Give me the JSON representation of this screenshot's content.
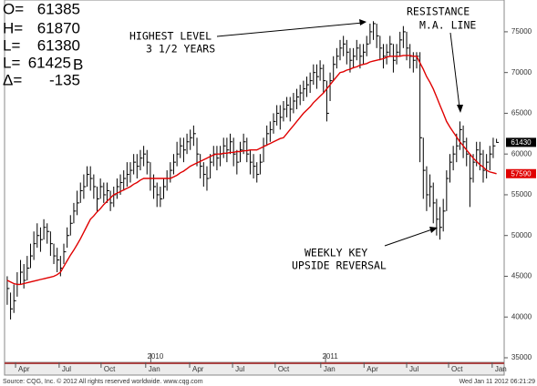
{
  "quote": {
    "rows": [
      {
        "label": "O=",
        "value": "61385"
      },
      {
        "label": "H=",
        "value": "61870"
      },
      {
        "label": "L=",
        "value": "61380"
      },
      {
        "label": "L=",
        "value": "61425",
        "flag": "B"
      },
      {
        "label": "Δ=",
        "value": "-135"
      }
    ]
  },
  "chart_data": {
    "type": "ohlc",
    "color": "#000000",
    "high": [
      45000,
      43000,
      44000,
      45500,
      47000,
      46500,
      47500,
      49000,
      50500,
      51500,
      51000,
      52000,
      51500,
      50500,
      49000,
      48500,
      47500,
      49000,
      51000,
      52500,
      54000,
      55500,
      56500,
      57500,
      58500,
      58500,
      57500,
      56000,
      57000,
      56500,
      56500,
      55500,
      56000,
      57000,
      57500,
      58000,
      59000,
      59000,
      60000,
      60000,
      60500,
      61000,
      60500,
      59000,
      57500,
      56500,
      56000,
      57000,
      58000,
      59000,
      60000,
      61500,
      62000,
      62000,
      62500,
      63000,
      63500,
      62000,
      60000,
      59000,
      58500,
      60000,
      61000,
      61000,
      61000,
      62000,
      62000,
      62500,
      62000,
      60500,
      61500,
      62500,
      62000,
      60500,
      60000,
      59000,
      60000,
      62000,
      63500,
      64000,
      65000,
      66000,
      66000,
      66500,
      67000,
      67000,
      67500,
      68000,
      68500,
      69000,
      69500,
      70000,
      71000,
      71000,
      71500,
      71000,
      69000,
      70000,
      72000,
      73000,
      74000,
      74500,
      74000,
      73000,
      73000,
      74000,
      73500,
      73500,
      74500,
      76000,
      76300,
      76000,
      74500,
      73500,
      73500,
      74500,
      73500,
      73500,
      75000,
      75700,
      75000,
      73500,
      72500,
      72500,
      72500,
      62000,
      58500,
      57500,
      56500,
      54500,
      53500,
      54500,
      58000,
      60000,
      61000,
      62500,
      64000,
      63500,
      62000,
      60000,
      60000,
      61500,
      61500,
      60500,
      60000,
      61000,
      62000,
      61870
    ],
    "low": [
      41500,
      39700,
      40500,
      42500,
      44000,
      43500,
      44500,
      46000,
      47000,
      48500,
      48000,
      49500,
      49000,
      47500,
      46500,
      45500,
      45000,
      46500,
      48500,
      50000,
      51500,
      52500,
      54000,
      54500,
      56000,
      55500,
      54500,
      53000,
      54500,
      54000,
      54000,
      53000,
      53500,
      54500,
      55000,
      55500,
      56000,
      56500,
      57500,
      57000,
      58000,
      58500,
      57500,
      55500,
      54500,
      53500,
      53500,
      54500,
      55500,
      56500,
      57500,
      58500,
      59500,
      59000,
      60000,
      60500,
      61000,
      58500,
      57000,
      56000,
      55500,
      57000,
      58500,
      58000,
      58500,
      59500,
      59000,
      60000,
      58500,
      57500,
      59000,
      60000,
      59000,
      57500,
      57000,
      56500,
      57500,
      59000,
      61000,
      61500,
      62500,
      63500,
      63000,
      64000,
      64500,
      64000,
      65000,
      65500,
      66000,
      66500,
      67000,
      67500,
      68500,
      68000,
      69000,
      67500,
      64000,
      66500,
      69000,
      70500,
      71500,
      72000,
      71000,
      70000,
      70500,
      71500,
      70500,
      71000,
      72000,
      73500,
      74000,
      73000,
      71500,
      70500,
      71000,
      72000,
      70000,
      71000,
      72000,
      73000,
      71500,
      70500,
      70000,
      70500,
      59000,
      54500,
      53000,
      53500,
      51500,
      50000,
      49500,
      50500,
      53000,
      56500,
      58000,
      59000,
      60500,
      59500,
      58500,
      53500,
      56500,
      58500,
      58000,
      56500,
      57000,
      58000,
      59500,
      61380
    ],
    "close": [
      43500,
      41000,
      42000,
      44000,
      45500,
      44500,
      46000,
      47500,
      49000,
      50000,
      49500,
      51000,
      50500,
      49000,
      47500,
      47000,
      46000,
      48000,
      50000,
      51500,
      53000,
      54000,
      55500,
      56000,
      57500,
      57000,
      56000,
      54500,
      56000,
      55000,
      55500,
      54000,
      55000,
      56000,
      56500,
      57000,
      57500,
      58000,
      59000,
      58500,
      59500,
      60000,
      59000,
      57000,
      56000,
      55000,
      54500,
      56000,
      57000,
      58000,
      59000,
      60000,
      61000,
      60500,
      61500,
      62000,
      62500,
      60000,
      58500,
      57500,
      57000,
      59000,
      60000,
      59500,
      60000,
      61000,
      60500,
      61500,
      60000,
      59000,
      60500,
      61500,
      60000,
      59000,
      58500,
      57500,
      59000,
      61000,
      62500,
      63000,
      64000,
      65000,
      64500,
      65500,
      66000,
      65500,
      66500,
      67000,
      67500,
      68000,
      68500,
      69000,
      70000,
      69500,
      70500,
      69000,
      65000,
      69000,
      71000,
      72000,
      73000,
      73500,
      72500,
      71500,
      72000,
      73000,
      72000,
      72500,
      73500,
      75000,
      76000,
      74500,
      73000,
      72000,
      72500,
      73500,
      71500,
      72500,
      74000,
      75000,
      73000,
      72000,
      71500,
      72000,
      62000,
      58000,
      55000,
      56000,
      54000,
      52000,
      51000,
      53000,
      57000,
      59000,
      60000,
      61000,
      63000,
      61500,
      60000,
      57000,
      59000,
      60500,
      60000,
      58000,
      59000,
      60000,
      61000,
      61425
    ],
    "ma": {
      "color": "#e00000",
      "values": [
        44500,
        44300,
        44100,
        44000,
        44000,
        44100,
        44200,
        44300,
        44400,
        44500,
        44600,
        44700,
        44800,
        44900,
        45000,
        45200,
        45500,
        46200,
        46900,
        47600,
        48200,
        48900,
        49600,
        50400,
        51200,
        52000,
        52400,
        52900,
        53300,
        53800,
        54200,
        54600,
        55000,
        55200,
        55400,
        55600,
        55800,
        56000,
        56300,
        56500,
        56800,
        57000,
        57000,
        57000,
        57000,
        57000,
        57000,
        57000,
        57000,
        57000,
        57200,
        57400,
        57700,
        57900,
        58200,
        58500,
        58700,
        58900,
        59100,
        59300,
        59500,
        59700,
        59900,
        60000,
        60000,
        60100,
        60100,
        60200,
        60200,
        60300,
        60300,
        60400,
        60400,
        60500,
        60500,
        60500,
        60700,
        60900,
        61100,
        61300,
        61500,
        61700,
        61900,
        62000,
        62500,
        63000,
        63500,
        64000,
        64500,
        65000,
        65400,
        65800,
        66300,
        66700,
        67100,
        67500,
        68000,
        68500,
        69000,
        69500,
        70000,
        70100,
        70300,
        70400,
        70600,
        70700,
        70900,
        71000,
        71100,
        71300,
        71400,
        71500,
        71600,
        71700,
        71900,
        72000,
        72000,
        72000,
        72000,
        72100,
        72100,
        72100,
        72000,
        72000,
        71200,
        70400,
        69500,
        68800,
        68000,
        67000,
        66000,
        65000,
        64000,
        63300,
        62700,
        62100,
        61500,
        61000,
        60500,
        60000,
        59500,
        59100,
        58700,
        58400,
        58000,
        57800,
        57700,
        57590
      ]
    },
    "last_label": 61430,
    "ma_label": 57590,
    "ylim": [
      34440,
      78900
    ],
    "yticks": [
      35000,
      40000,
      45000,
      50000,
      55000,
      60000,
      65000,
      70000,
      75000
    ],
    "xlim": [
      -0.8,
      149.3
    ],
    "xticks": [
      {
        "value": 2.5,
        "label": "Apr"
      },
      {
        "value": 15.6,
        "label": "Jul"
      },
      {
        "value": 28.2,
        "label": "Oct"
      },
      {
        "value": 41.6,
        "label": "Jan"
      },
      {
        "value": 54.8,
        "label": "Apr"
      },
      {
        "value": 67.7,
        "label": "Jul"
      },
      {
        "value": 80.5,
        "label": "Oct"
      },
      {
        "value": 94.2,
        "label": "Jan"
      },
      {
        "value": 107.2,
        "label": "Apr"
      },
      {
        "value": 120,
        "label": "Jul"
      },
      {
        "value": 132.6,
        "label": "Oct"
      },
      {
        "value": 145.7,
        "label": "Jan"
      }
    ],
    "year_labels": [
      {
        "value": 44.5,
        "label": "2010"
      },
      {
        "value": 97,
        "label": "2011"
      }
    ],
    "annotations": {
      "highest": [
        "HIGHEST LEVEL",
        "3 1/2 YEARS"
      ],
      "resistance": [
        "RESISTANCE",
        "M.A. LINE"
      ],
      "reversal": [
        "WEEKLY KEY",
        "UPSIDE REVERSAL"
      ]
    }
  },
  "footer": {
    "source": "Source: CQG, Inc. © 2012 All rights reserved worldwide. www.cqg.com",
    "timestamp": "Wed Jan 11 2012 06:21:29"
  }
}
